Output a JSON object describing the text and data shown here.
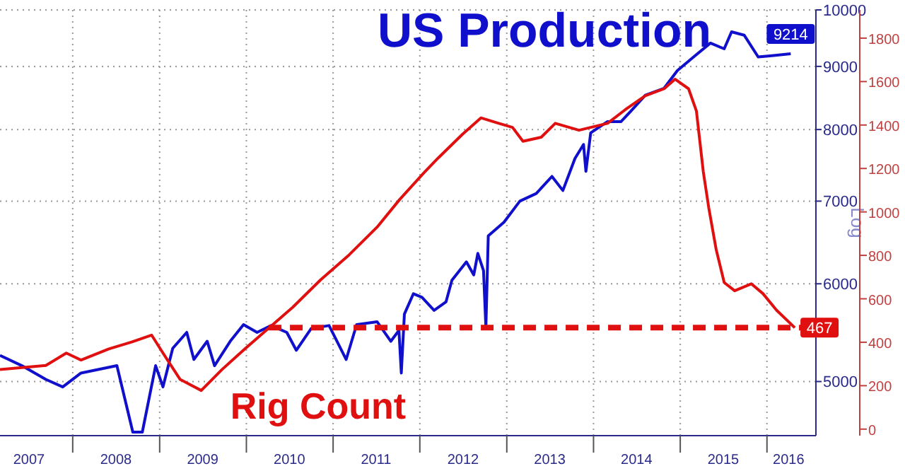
{
  "chart_data": {
    "type": "line",
    "ylabel": "Log",
    "log": "y",
    "grid": true,
    "marker": "none",
    "xlim": [
      "2007-03-01",
      "2016-07-25"
    ],
    "xticks": [
      {
        "value": "2007-07-01",
        "label": "2007"
      },
      {
        "value": "2008-01-01",
        "label": null
      },
      {
        "value": "2008-07-01",
        "label": "2008"
      },
      {
        "value": "2009-01-01",
        "label": null
      },
      {
        "value": "2009-07-01",
        "label": "2009"
      },
      {
        "value": "2010-01-01",
        "label": null
      },
      {
        "value": "2010-07-01",
        "label": "2010"
      },
      {
        "value": "2011-01-01",
        "label": null
      },
      {
        "value": "2011-07-01",
        "label": "2011"
      },
      {
        "value": "2012-01-01",
        "label": null
      },
      {
        "value": "2012-07-01",
        "label": "2012"
      },
      {
        "value": "2013-01-01",
        "label": null
      },
      {
        "value": "2013-07-01",
        "label": "2013"
      },
      {
        "value": "2014-01-01",
        "label": null
      },
      {
        "value": "2014-07-01",
        "label": "2014"
      },
      {
        "value": "2015-01-01",
        "label": null
      },
      {
        "value": "2015-07-01",
        "label": "2015"
      },
      {
        "value": "2016-01-01",
        "label": null
      },
      {
        "value": "2016-04-01",
        "label": "2016"
      }
    ],
    "ylim": [
      4520,
      10000
    ],
    "yticks": [
      5000,
      6000,
      7000,
      8000,
      9000,
      10000
    ],
    "y2lim": [
      -30,
      1930
    ],
    "y2ticks": [
      0,
      200,
      400,
      600,
      800,
      1000,
      1200,
      1400,
      1600,
      1800
    ],
    "series": [
      {
        "name": "US Production",
        "color": "#1010cc",
        "x": [
          "2007-03-01",
          "2007-06-01",
          "2007-09-10",
          "2007-11-20",
          "2008-02-05",
          "2008-07-05",
          "2008-09-10",
          "2008-10-20",
          "2008-12-15",
          "2009-01-15",
          "2009-02-25",
          "2009-04-25",
          "2009-05-25",
          "2009-07-20",
          "2009-08-20",
          "2009-10-25",
          "2009-12-20",
          "2010-02-15",
          "2010-04-15",
          "2010-06-20",
          "2010-07-30",
          "2010-10-01",
          "2010-12-15",
          "2011-02-25",
          "2011-04-10",
          "2011-07-05",
          "2011-09-01",
          "2011-10-05",
          "2011-10-15",
          "2011-10-28",
          "2011-12-05",
          "2012-01-10",
          "2012-03-01",
          "2012-04-20",
          "2012-05-15",
          "2012-07-15",
          "2012-08-15",
          "2012-09-01",
          "2012-09-25",
          "2012-10-05",
          "2012-10-15",
          "2012-12-20",
          "2013-02-25",
          "2013-05-05",
          "2013-07-10",
          "2013-08-25",
          "2013-10-15",
          "2013-11-20",
          "2013-11-30",
          "2013-12-20",
          "2014-03-01",
          "2014-04-27",
          "2014-06-10",
          "2014-08-07",
          "2014-10-25",
          "2014-12-20",
          "2015-03-01",
          "2015-05-08",
          "2015-07-05",
          "2015-08-05",
          "2015-09-27",
          "2015-11-25",
          "2016-01-22",
          "2016-04-10"
        ],
        "values": [
          5250,
          5150,
          5020,
          4950,
          5080,
          5150,
          4550,
          4550,
          5150,
          4950,
          5320,
          5480,
          5210,
          5390,
          5150,
          5390,
          5560,
          5480,
          5550,
          5480,
          5300,
          5520,
          5550,
          5210,
          5560,
          5590,
          5390,
          5500,
          5080,
          5670,
          5890,
          5850,
          5710,
          5800,
          6040,
          6250,
          6100,
          6350,
          6150,
          5530,
          6560,
          6730,
          7000,
          7100,
          7330,
          7140,
          7580,
          7780,
          7400,
          7950,
          8120,
          8120,
          8290,
          8530,
          8640,
          8930,
          9170,
          9400,
          9300,
          9600,
          9540,
          9160,
          9180,
          9214
        ],
        "value_labels": [
          null,
          null,
          null,
          null,
          null,
          null,
          null,
          null,
          null,
          null,
          null,
          null,
          null,
          null,
          null,
          null,
          null,
          null,
          null,
          null,
          null,
          null,
          null,
          null,
          null,
          null,
          null,
          null,
          null,
          null,
          null,
          null,
          null,
          null,
          null,
          null,
          null,
          null,
          null,
          null,
          null,
          null,
          null,
          null,
          null,
          null,
          null,
          null,
          null,
          null,
          null,
          null,
          null,
          null,
          null,
          null,
          null,
          null,
          null,
          null,
          null,
          null,
          null,
          "9214"
        ]
      },
      {
        "name": "Rig Count",
        "color": "#e01010",
        "axis": "y2",
        "x": [
          "2007-03-01",
          "2007-09-10",
          "2007-12-05",
          "2008-02-05",
          "2008-06-01",
          "2008-09-05",
          "2008-11-28",
          "2009-01-15",
          "2009-03-28",
          "2009-06-25",
          "2009-09-20",
          "2009-12-25",
          "2010-04-05",
          "2010-07-15",
          "2010-11-10",
          "2011-03-10",
          "2011-07-05",
          "2011-10-08",
          "2012-01-18",
          "2012-03-18",
          "2012-06-28",
          "2012-09-14",
          "2012-11-28",
          "2013-01-25",
          "2013-03-10",
          "2013-05-26",
          "2013-07-24",
          "2013-11-01",
          "2014-03-01",
          "2014-05-15",
          "2014-08-07",
          "2014-10-25",
          "2014-12-10",
          "2015-02-05",
          "2015-03-10",
          "2015-04-08",
          "2015-05-01",
          "2015-06-01",
          "2015-07-05",
          "2015-08-18",
          "2015-10-27",
          "2015-12-15",
          "2016-02-10",
          "2016-04-27"
        ],
        "values": [
          274,
          293,
          350,
          318,
          369,
          401,
          433,
          350,
          229,
          178,
          274,
          369,
          465,
          561,
          688,
          803,
          930,
          1057,
          1180,
          1248,
          1357,
          1433,
          1408,
          1389,
          1325,
          1344,
          1408,
          1376,
          1408,
          1471,
          1535,
          1567,
          1611,
          1567,
          1465,
          1185,
          1019,
          828,
          675,
          637,
          669,
          624,
          548,
          467
        ],
        "value_labels": [
          null,
          null,
          null,
          null,
          null,
          null,
          null,
          null,
          null,
          null,
          null,
          null,
          null,
          null,
          null,
          null,
          null,
          null,
          null,
          null,
          null,
          null,
          null,
          null,
          null,
          null,
          null,
          null,
          null,
          null,
          null,
          null,
          null,
          null,
          null,
          null,
          null,
          null,
          null,
          null,
          null,
          null,
          null,
          "467"
        ]
      },
      {
        "color": "#e01010",
        "axis": "y2",
        "line_style": "dashed",
        "x": [
          "2010-04-05",
          "2016-07-25"
        ],
        "values": [
          467,
          467
        ]
      }
    ]
  }
}
